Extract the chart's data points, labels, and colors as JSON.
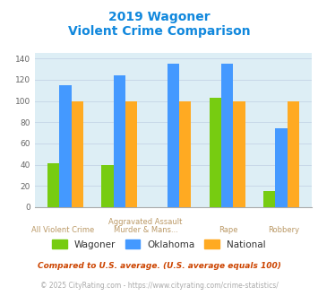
{
  "title_line1": "2019 Wagoner",
  "title_line2": "Violent Crime Comparison",
  "categories": [
    "All Violent Crime",
    "Aggravated Assault",
    "Murder & Mans...",
    "Rape",
    "Robbery"
  ],
  "wagoner": [
    41,
    40,
    0,
    103,
    15
  ],
  "oklahoma": [
    115,
    124,
    135,
    135,
    74
  ],
  "national": [
    100,
    100,
    100,
    100,
    100
  ],
  "bar_colors": {
    "wagoner": "#77cc11",
    "oklahoma": "#4499ff",
    "national": "#ffaa22"
  },
  "ylim": [
    0,
    145
  ],
  "yticks": [
    0,
    20,
    40,
    60,
    80,
    100,
    120,
    140
  ],
  "title_color": "#1188dd",
  "axis_label_color": "#bb9966",
  "plot_bg": "#ddeef5",
  "legend_label_color": "#333333",
  "footnote1": "Compared to U.S. average. (U.S. average equals 100)",
  "footnote2": "© 2025 CityRating.com - https://www.cityrating.com/crime-statistics/",
  "footnote1_color": "#cc4400",
  "footnote2_color": "#aaaaaa",
  "grid_color": "#c8d8e8",
  "bar_width": 0.22
}
